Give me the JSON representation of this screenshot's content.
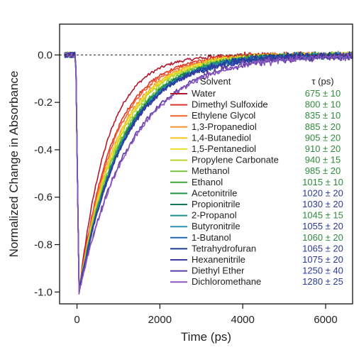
{
  "chart_data": {
    "type": "line",
    "xlabel": "Time (ps)",
    "ylabel": "Normalized Change in Absorbance",
    "xlim": [
      -420,
      6650
    ],
    "ylim": [
      -1.05,
      0.13
    ],
    "x_ticks": [
      0,
      2000,
      4000,
      6000
    ],
    "x_tick_labels": [
      "0",
      "2000",
      "4000",
      "6000"
    ],
    "y_ticks": [
      0.0,
      -0.2,
      -0.4,
      -0.6,
      -0.8,
      -1.0
    ],
    "y_tick_labels": [
      "0.0",
      "-0.2",
      "-0.4",
      "-0.6",
      "-0.8",
      "-1.0"
    ],
    "zero_line": "dashed",
    "grid": false,
    "legend_position": "center-right",
    "legend": {
      "header_left": "Solvent",
      "header_right": "τ (ps)"
    },
    "x_min_at_peak": 50,
    "minimum_value": -1.0,
    "series": [
      {
        "name": "Water",
        "tau": 675,
        "tau_label": "675 ± 10",
        "color": "#b2182b",
        "tau_color": "#2e8b3d"
      },
      {
        "name": "Dimethyl Sulfoxide",
        "tau": 800,
        "tau_label": "800 ± 10",
        "color": "#e0352b",
        "tau_color": "#2e8b3d"
      },
      {
        "name": "Ethylene Glycol",
        "tau": 835,
        "tau_label": "835 ± 10",
        "color": "#f0632a",
        "tau_color": "#2e8b3d"
      },
      {
        "name": "1,3-Propanediol",
        "tau": 885,
        "tau_label": "885 ± 20",
        "color": "#f7922c",
        "tau_color": "#2e8b3d"
      },
      {
        "name": "1,4-Butanediol",
        "tau": 905,
        "tau_label": "905 ± 20",
        "color": "#f7c521",
        "tau_color": "#2e8b3d"
      },
      {
        "name": "1,5-Pentanediol",
        "tau": 910,
        "tau_label": "910 ± 20",
        "color": "#eee32b",
        "tau_color": "#2e8b3d"
      },
      {
        "name": "Propylene Carbonate",
        "tau": 940,
        "tau_label": "940 ± 15",
        "color": "#b8d430",
        "tau_color": "#2e8b3d"
      },
      {
        "name": "Methanol",
        "tau": 985,
        "tau_label": "985 ± 20",
        "color": "#7cc242",
        "tau_color": "#2e8b3d"
      },
      {
        "name": "Ethanol",
        "tau": 1015,
        "tau_label": "1015 ± 10",
        "color": "#3aa935",
        "tau_color": "#2e8b3d"
      },
      {
        "name": "Acetonitrile",
        "tau": 1020,
        "tau_label": "1020 ± 20",
        "color": "#1f9244",
        "tau_color": "#2b3a9c"
      },
      {
        "name": "Propionitrile",
        "tau": 1030,
        "tau_label": "1030 ± 20",
        "color": "#147a55",
        "tau_color": "#2b3a9c"
      },
      {
        "name": "2-Propanol",
        "tau": 1045,
        "tau_label": "1045 ± 15",
        "color": "#1c8f8a",
        "tau_color": "#2e8b3d"
      },
      {
        "name": "Butyronitrile",
        "tau": 1055,
        "tau_label": "1055 ± 20",
        "color": "#2a92b8",
        "tau_color": "#2b3a9c"
      },
      {
        "name": "1-Butanol",
        "tau": 1060,
        "tau_label": "1060 ± 20",
        "color": "#2266b0",
        "tau_color": "#2e8b3d"
      },
      {
        "name": "Tetrahydrofuran",
        "tau": 1065,
        "tau_label": "1065 ± 20",
        "color": "#1c3f94",
        "tau_color": "#2b3a9c"
      },
      {
        "name": "Hexanenitrile",
        "tau": 1075,
        "tau_label": "1075 ± 20",
        "color": "#3a3aa6",
        "tau_color": "#2b3a9c"
      },
      {
        "name": "Diethyl Ether",
        "tau": 1250,
        "tau_label": "1250 ± 40",
        "color": "#5b3aa6",
        "tau_color": "#2b3a9c"
      },
      {
        "name": "Dichloromethane",
        "tau": 1280,
        "tau_label": "1280 ± 25",
        "color": "#8b55c0",
        "tau_color": "#2b3a9c"
      }
    ]
  }
}
